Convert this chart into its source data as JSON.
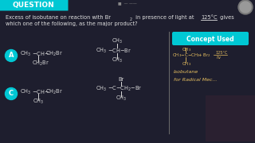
{
  "bg_color": "#1e1e2e",
  "title_bg": "#00c8d4",
  "title_text": "QUESTION",
  "title_color": "#ffffff",
  "q_line1": "Excess of isobutane on reaction with Br",
  "q_line1b": "2",
  "q_line1c": " in presence of light at ",
  "q_line1d": "125°C",
  "q_line1e": " gives",
  "q_line2": "which one of the following, as the major product?",
  "question_color": "#e0e0e0",
  "option_A_color": "#00c8d4",
  "option_C_color": "#00c8d4",
  "concept_box_color": "#00c8d4",
  "concept_text": "Concept Used",
  "divider_color": "#666666",
  "white": "#d8d8d8",
  "yellow": "#e8c060",
  "bg_dark": "#141428"
}
